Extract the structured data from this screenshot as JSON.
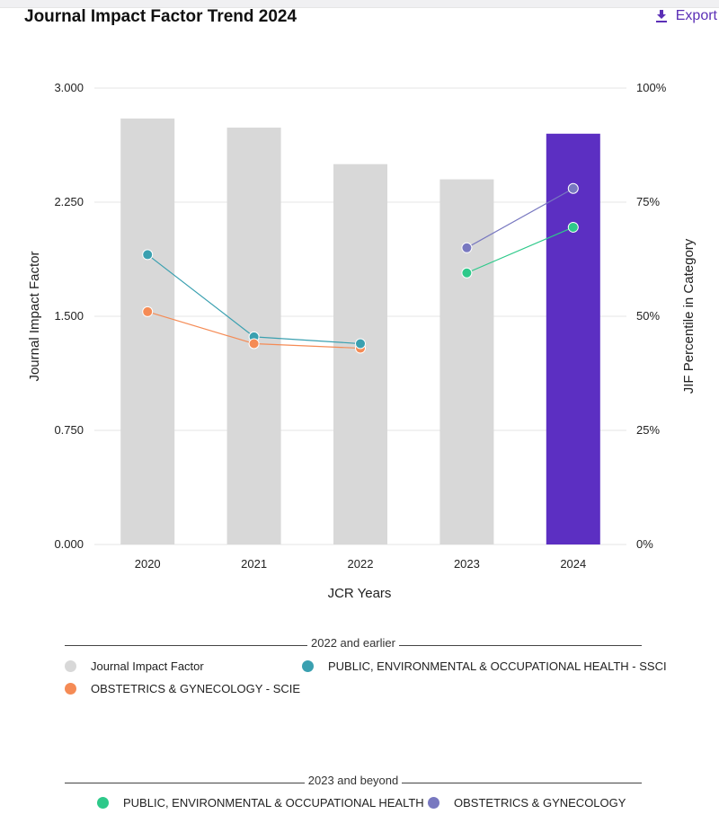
{
  "header": {
    "title": "Journal Impact Factor Trend 2024",
    "export_label": "Export",
    "export_icon": "download-icon"
  },
  "colors": {
    "bar_gray": "#d8d8d8",
    "bar_highlight": "#5c2fc2",
    "ssci_line": "#3aa0b0",
    "scie_line": "#f58b55",
    "pe_oh_line": "#2ec98a",
    "obgyn_line": "#7878c0",
    "accent": "#5b2fb6"
  },
  "chart_data": {
    "type": "bar",
    "categories": [
      "2020",
      "2021",
      "2022",
      "2023",
      "2024"
    ],
    "xlabel": "JCR Years",
    "ylabel": "Journal Impact Factor",
    "y2label": "JIF Percentile in Category",
    "ylim": [
      0,
      3
    ],
    "y2lim": [
      0,
      100
    ],
    "yticks": [
      "0.000",
      "0.750",
      "1.500",
      "2.250",
      "3.000"
    ],
    "y2ticks": [
      "0%",
      "25%",
      "50%",
      "75%",
      "100%"
    ],
    "grid": true,
    "bars": {
      "name": "Journal Impact Factor",
      "values": [
        2.8,
        2.74,
        2.5,
        2.4,
        2.7
      ],
      "highlight_index": 4
    },
    "percentile_series": [
      {
        "name": "PUBLIC, ENVIRONMENTAL & OCCUPATIONAL HEALTH - SSCI",
        "color": "#3aa0b0",
        "values": [
          63.5,
          45.5,
          null,
          null,
          null
        ]
      },
      {
        "name": "OBSTETRICS & GYNECOLOGY - SCIE",
        "color": "#f58b55",
        "values": [
          51,
          44,
          43,
          null,
          null
        ]
      },
      {
        "name": "PUBLIC, ENVIRONMENTAL & OCCUPATIONAL HEALTH",
        "color": "#2ec98a",
        "values": [
          null,
          null,
          null,
          59.5,
          69.5
        ]
      },
      {
        "name": "OBSTETRICS & GYNECOLOGY",
        "color": "#7878c0",
        "values": [
          null,
          null,
          null,
          65,
          78
        ]
      }
    ],
    "extra_points": [
      {
        "series": "PUBLIC, ENVIRONMENTAL & OCCUPATIONAL HEALTH - SSCI",
        "color": "#3aa0b0",
        "category": "2022",
        "value": 44
      }
    ]
  },
  "legend": {
    "group1_title": "2022 and earlier",
    "group2_title": "2023 and beyond",
    "group1_items": [
      {
        "label": "Journal Impact Factor",
        "color": "#d8d8d8"
      },
      {
        "label": "PUBLIC, ENVIRONMENTAL & OCCUPATIONAL HEALTH - SSCI",
        "color": "#3aa0b0"
      },
      {
        "label": "OBSTETRICS & GYNECOLOGY - SCIE",
        "color": "#f58b55"
      }
    ],
    "group2_items": [
      {
        "label": "PUBLIC, ENVIRONMENTAL & OCCUPATIONAL HEALTH",
        "color": "#2ec98a"
      },
      {
        "label": "OBSTETRICS & GYNECOLOGY",
        "color": "#7878c0"
      }
    ]
  }
}
